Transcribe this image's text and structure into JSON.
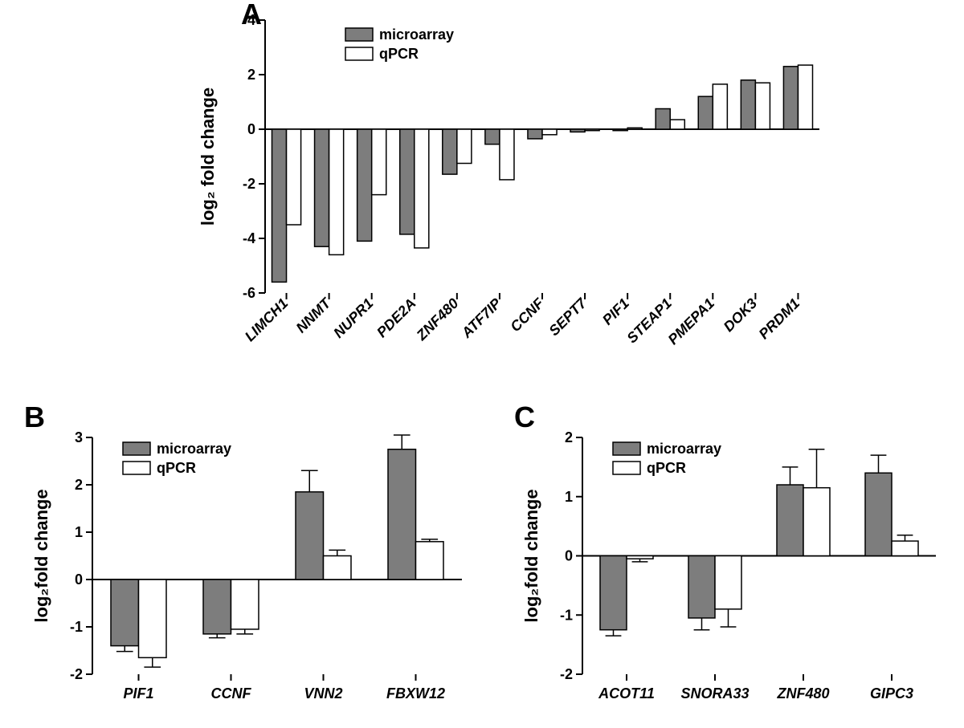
{
  "global": {
    "bg": "#ffffff",
    "axis_color": "#000000",
    "microarray_fill": "#7d7d7d",
    "qpcr_fill": "#ffffff",
    "bar_stroke": "#000000",
    "bar_stroke_width": 1.5,
    "error_stroke_width": 1.5
  },
  "legend": {
    "microarray": "microarray",
    "qpcr": "qPCR"
  },
  "panelA": {
    "letter": "A",
    "ylabel": "log₂ fold change",
    "ylim": [
      -6,
      4
    ],
    "ytick_step": 2,
    "categories": [
      "LIMCH1",
      "NNMT",
      "NUPR1",
      "PDE2A",
      "ZNF480",
      "ATF7IP",
      "CCNF",
      "SEPT7",
      "PIF1",
      "STEAP1",
      "PMEPA1",
      "DOK3",
      "PRDM1"
    ],
    "series": {
      "microarray": [
        -5.6,
        -4.3,
        -4.1,
        -3.85,
        -1.65,
        -0.55,
        -0.35,
        -0.1,
        -0.05,
        0.75,
        1.2,
        1.8,
        2.3
      ],
      "qpcr": [
        -3.5,
        -4.6,
        -2.4,
        -4.35,
        -1.25,
        -1.85,
        -0.2,
        -0.05,
        0.05,
        0.35,
        1.65,
        1.7,
        2.35
      ]
    },
    "bar_rel_width": 0.34,
    "group_gap": 1.0
  },
  "panelB": {
    "letter": "B",
    "ylabel": "log₂fold change",
    "ylim": [
      -2,
      3
    ],
    "yticks": [
      -2,
      -1,
      0,
      1,
      2,
      3
    ],
    "categories": [
      "PIF1",
      "CCNF",
      "VNN2",
      "FBXW12"
    ],
    "series": {
      "microarray": {
        "vals": [
          -1.4,
          -1.15,
          1.85,
          2.75
        ],
        "err": [
          0.12,
          0.08,
          0.45,
          0.3
        ]
      },
      "qpcr": {
        "vals": [
          -1.65,
          -1.05,
          0.5,
          0.8
        ],
        "err": [
          0.2,
          0.1,
          0.12,
          0.05
        ]
      }
    },
    "bar_rel_width": 0.3
  },
  "panelC": {
    "letter": "C",
    "ylabel": "log₂fold change",
    "ylim": [
      -2,
      2
    ],
    "yticks": [
      -2,
      -1,
      0,
      1,
      2
    ],
    "categories": [
      "ACOT11",
      "SNORA33",
      "ZNF480",
      "GIPC3"
    ],
    "series": {
      "microarray": {
        "vals": [
          -1.25,
          -1.05,
          1.2,
          1.4
        ],
        "err": [
          0.1,
          0.2,
          0.3,
          0.3
        ]
      },
      "qpcr": {
        "vals": [
          -0.05,
          -0.9,
          1.15,
          0.25
        ],
        "err": [
          0.05,
          0.3,
          0.65,
          0.1
        ]
      }
    },
    "bar_rel_width": 0.3
  }
}
